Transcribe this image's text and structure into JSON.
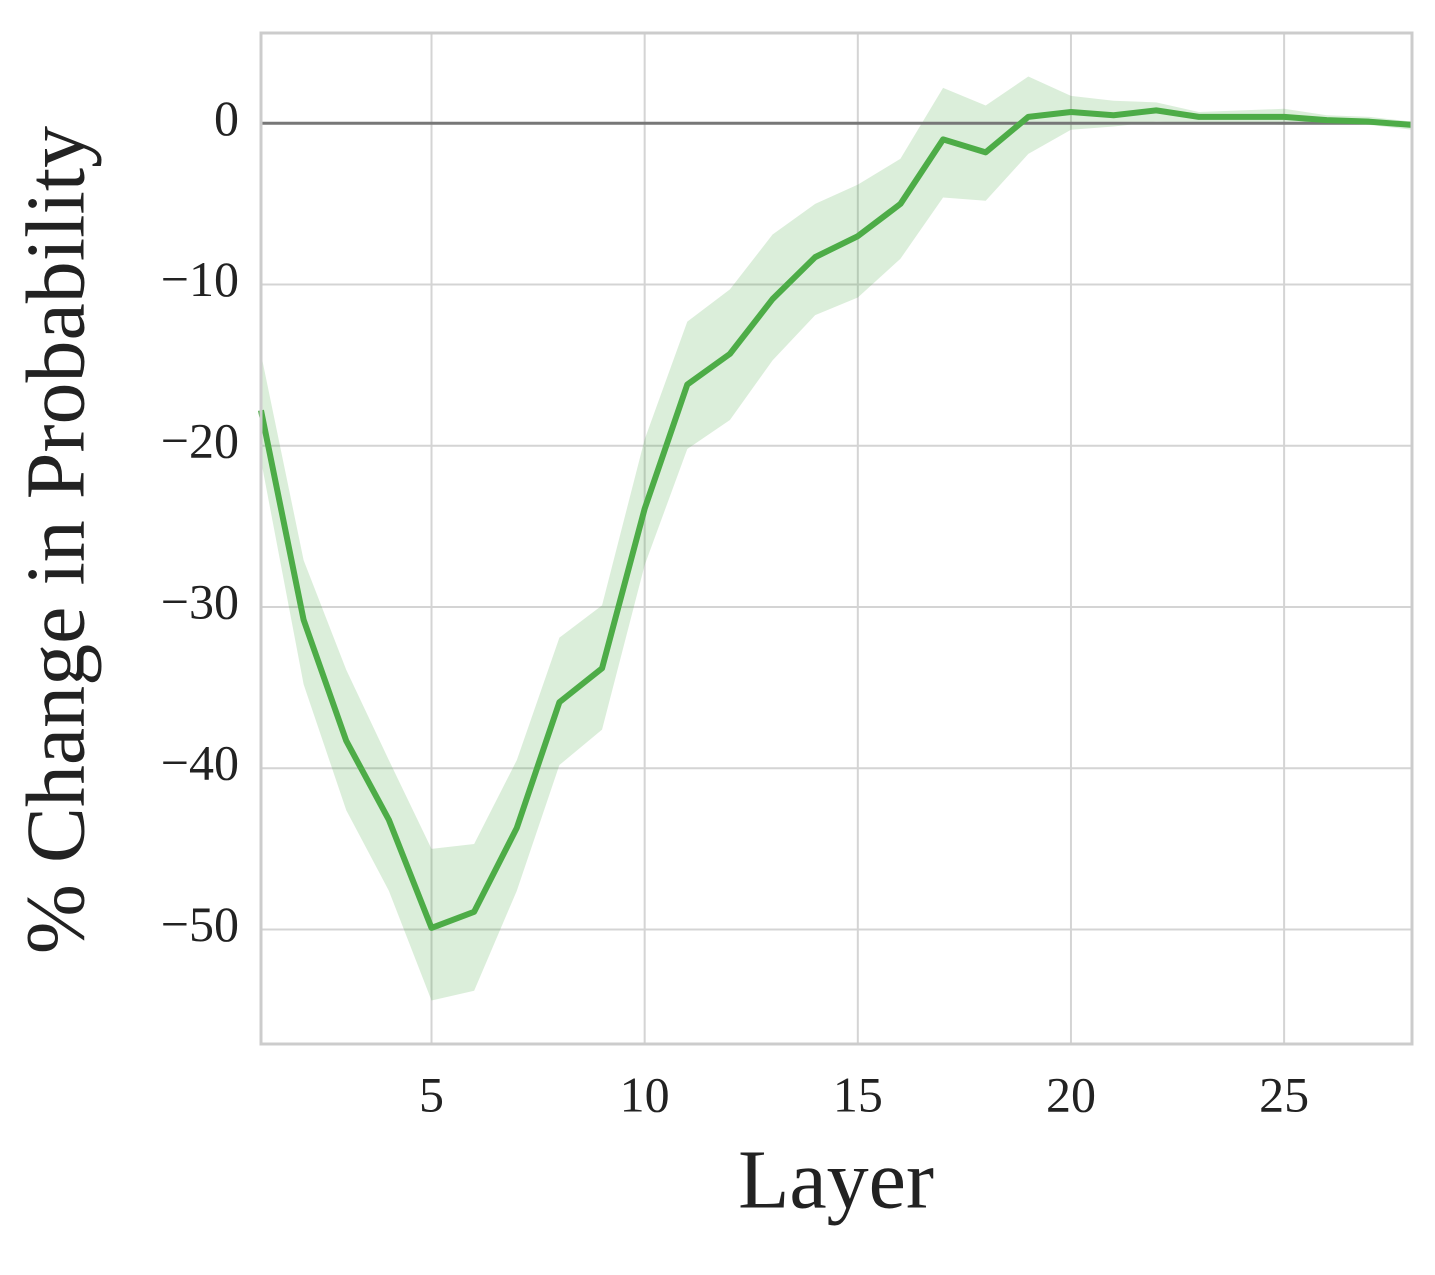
{
  "chart_data": {
    "type": "line",
    "xlabel": "Layer",
    "ylabel": "% Change in Probability",
    "x": [
      1,
      2,
      3,
      4,
      5,
      6,
      7,
      8,
      9,
      10,
      11,
      12,
      13,
      14,
      15,
      16,
      17,
      18,
      19,
      20,
      21,
      22,
      23,
      24,
      25,
      26,
      27,
      28
    ],
    "series": [
      {
        "color": "#4dac47",
        "values": [
          -17.8,
          -30.8,
          -38.3,
          -43.2,
          -49.9,
          -48.9,
          -43.7,
          -35.9,
          -33.8,
          -23.9,
          -16.2,
          -14.3,
          -10.9,
          -8.3,
          -7.0,
          -5.0,
          -1.0,
          -1.8,
          0.4,
          0.7,
          0.5,
          0.8,
          0.4,
          0.4,
          0.4,
          0.2,
          0.1,
          -0.1
        ],
        "upper": [
          -14.3,
          -27.1,
          -33.9,
          -39.5,
          -45.0,
          -44.7,
          -39.5,
          -31.9,
          -29.9,
          -19.6,
          -12.3,
          -10.3,
          -6.9,
          -5.0,
          -3.8,
          -2.2,
          2.2,
          1.1,
          2.9,
          1.7,
          1.4,
          1.3,
          0.7,
          0.8,
          0.9,
          0.5,
          0.4,
          0.1
        ],
        "lower": [
          -20.9,
          -34.8,
          -42.6,
          -47.6,
          -54.4,
          -53.8,
          -47.6,
          -39.8,
          -37.6,
          -27.4,
          -20.2,
          -18.4,
          -14.7,
          -11.9,
          -10.8,
          -8.4,
          -4.6,
          -4.8,
          -1.9,
          -0.4,
          -0.2,
          0.1,
          0,
          0,
          -0.1,
          -0.1,
          -0.1,
          -0.4
        ]
      }
    ],
    "xlim": [
      1,
      28
    ],
    "ylim": [
      -57.1,
      5.6
    ],
    "xticks": [
      5,
      10,
      15,
      20,
      25
    ],
    "yticks": [
      {
        "value": -50,
        "label": "−50"
      },
      {
        "value": -40,
        "label": "−40"
      },
      {
        "value": -30,
        "label": "−30"
      },
      {
        "value": -20,
        "label": "−20"
      },
      {
        "value": -10,
        "label": "−10"
      },
      0
    ],
    "reference_line": 0,
    "grid": true
  }
}
